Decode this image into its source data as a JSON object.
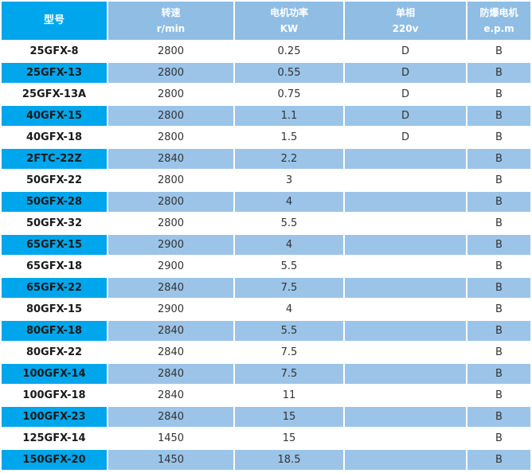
{
  "table": {
    "headers": [
      {
        "line1": "型号",
        "line2": ""
      },
      {
        "line1": "转速",
        "line2": "r/min"
      },
      {
        "line1": "电机功率",
        "line2": "KW"
      },
      {
        "line1": "单相",
        "line2": "220v"
      },
      {
        "line1": "防爆电机",
        "line2": "e.p.m"
      }
    ],
    "rows": [
      [
        "25GFX-8",
        "2800",
        "0.25",
        "D",
        "B"
      ],
      [
        "25GFX-13",
        "2800",
        "0.55",
        "D",
        "B"
      ],
      [
        "25GFX-13A",
        "2800",
        "0.75",
        "D",
        "B"
      ],
      [
        "40GFX-15",
        "2800",
        "1.1",
        "D",
        "B"
      ],
      [
        "40GFX-18",
        "2800",
        "1.5",
        "D",
        "B"
      ],
      [
        "2FTC-22Z",
        "2840",
        "2.2",
        "",
        "B"
      ],
      [
        "50GFX-22",
        "2800",
        "3",
        "",
        "B"
      ],
      [
        "50GFX-28",
        "2800",
        "4",
        "",
        "B"
      ],
      [
        "50GFX-32",
        "2800",
        "5.5",
        "",
        "B"
      ],
      [
        "65GFX-15",
        "2900",
        "4",
        "",
        "B"
      ],
      [
        "65GFX-18",
        "2900",
        "5.5",
        "",
        "B"
      ],
      [
        "65GFX-22",
        "2840",
        "7.5",
        "",
        "B"
      ],
      [
        "80GFX-15",
        "2900",
        "4",
        "",
        "B"
      ],
      [
        "80GFX-18",
        "2840",
        "5.5",
        "",
        "B"
      ],
      [
        "80GFX-22",
        "2840",
        "7.5",
        "",
        "B"
      ],
      [
        "100GFX-14",
        "2840",
        "7.5",
        "",
        "B"
      ],
      [
        "100GFX-18",
        "2840",
        "11",
        "",
        "B"
      ],
      [
        "100GFX-23",
        "2840",
        "15",
        "",
        "B"
      ],
      [
        "125GFX-14",
        "1450",
        "15",
        "",
        "B"
      ],
      [
        "150GFX-20",
        "1450",
        "18.5",
        "",
        "B"
      ]
    ]
  }
}
